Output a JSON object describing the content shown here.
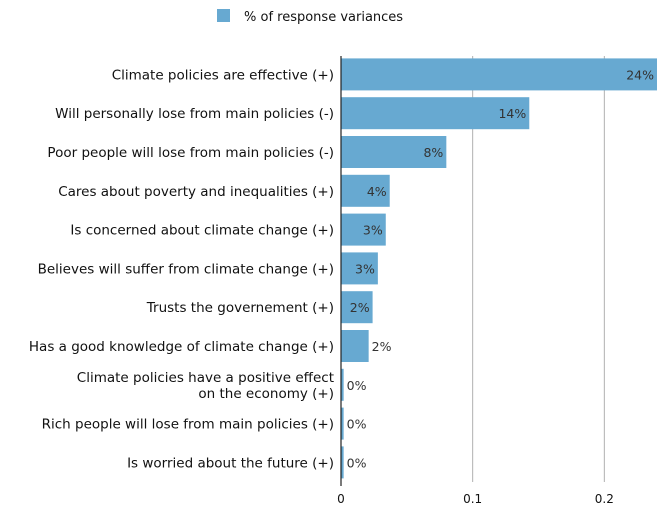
{
  "chart_data": {
    "type": "bar",
    "orientation": "horizontal",
    "legend_position": "top",
    "grid": true,
    "xlim": [
      0,
      0.24
    ],
    "x_ticks": [
      "0",
      "0.1",
      "0.2"
    ],
    "categories": [
      [
        "Climate policies are effective (+)"
      ],
      [
        "Will personally lose from main policies (-)"
      ],
      [
        "Poor people will lose from main policies (-)"
      ],
      [
        "Cares about poverty and inequalities (+)"
      ],
      [
        "Is concerned about climate change (+)"
      ],
      [
        "Believes will suffer from climate change (+)"
      ],
      [
        "Trusts the governement (+)"
      ],
      [
        "Has a good knowledge of climate change (+)"
      ],
      [
        "Climate policies have a positive effect",
        "on the economy (+)"
      ],
      [
        "Rich people will lose from main policies (+)"
      ],
      [
        "Is worried about the future (+)"
      ]
    ],
    "series": [
      {
        "name": "% of response variances",
        "color": "#67a9d1",
        "values": [
          0.24,
          0.143,
          0.08,
          0.037,
          0.034,
          0.028,
          0.024,
          0.021,
          0.002,
          0.002,
          0.002
        ],
        "labels": [
          "24%",
          "14%",
          "8%",
          "4%",
          "3%",
          "3%",
          "2%",
          "2%",
          "0%",
          "0%",
          "0%"
        ]
      }
    ]
  }
}
